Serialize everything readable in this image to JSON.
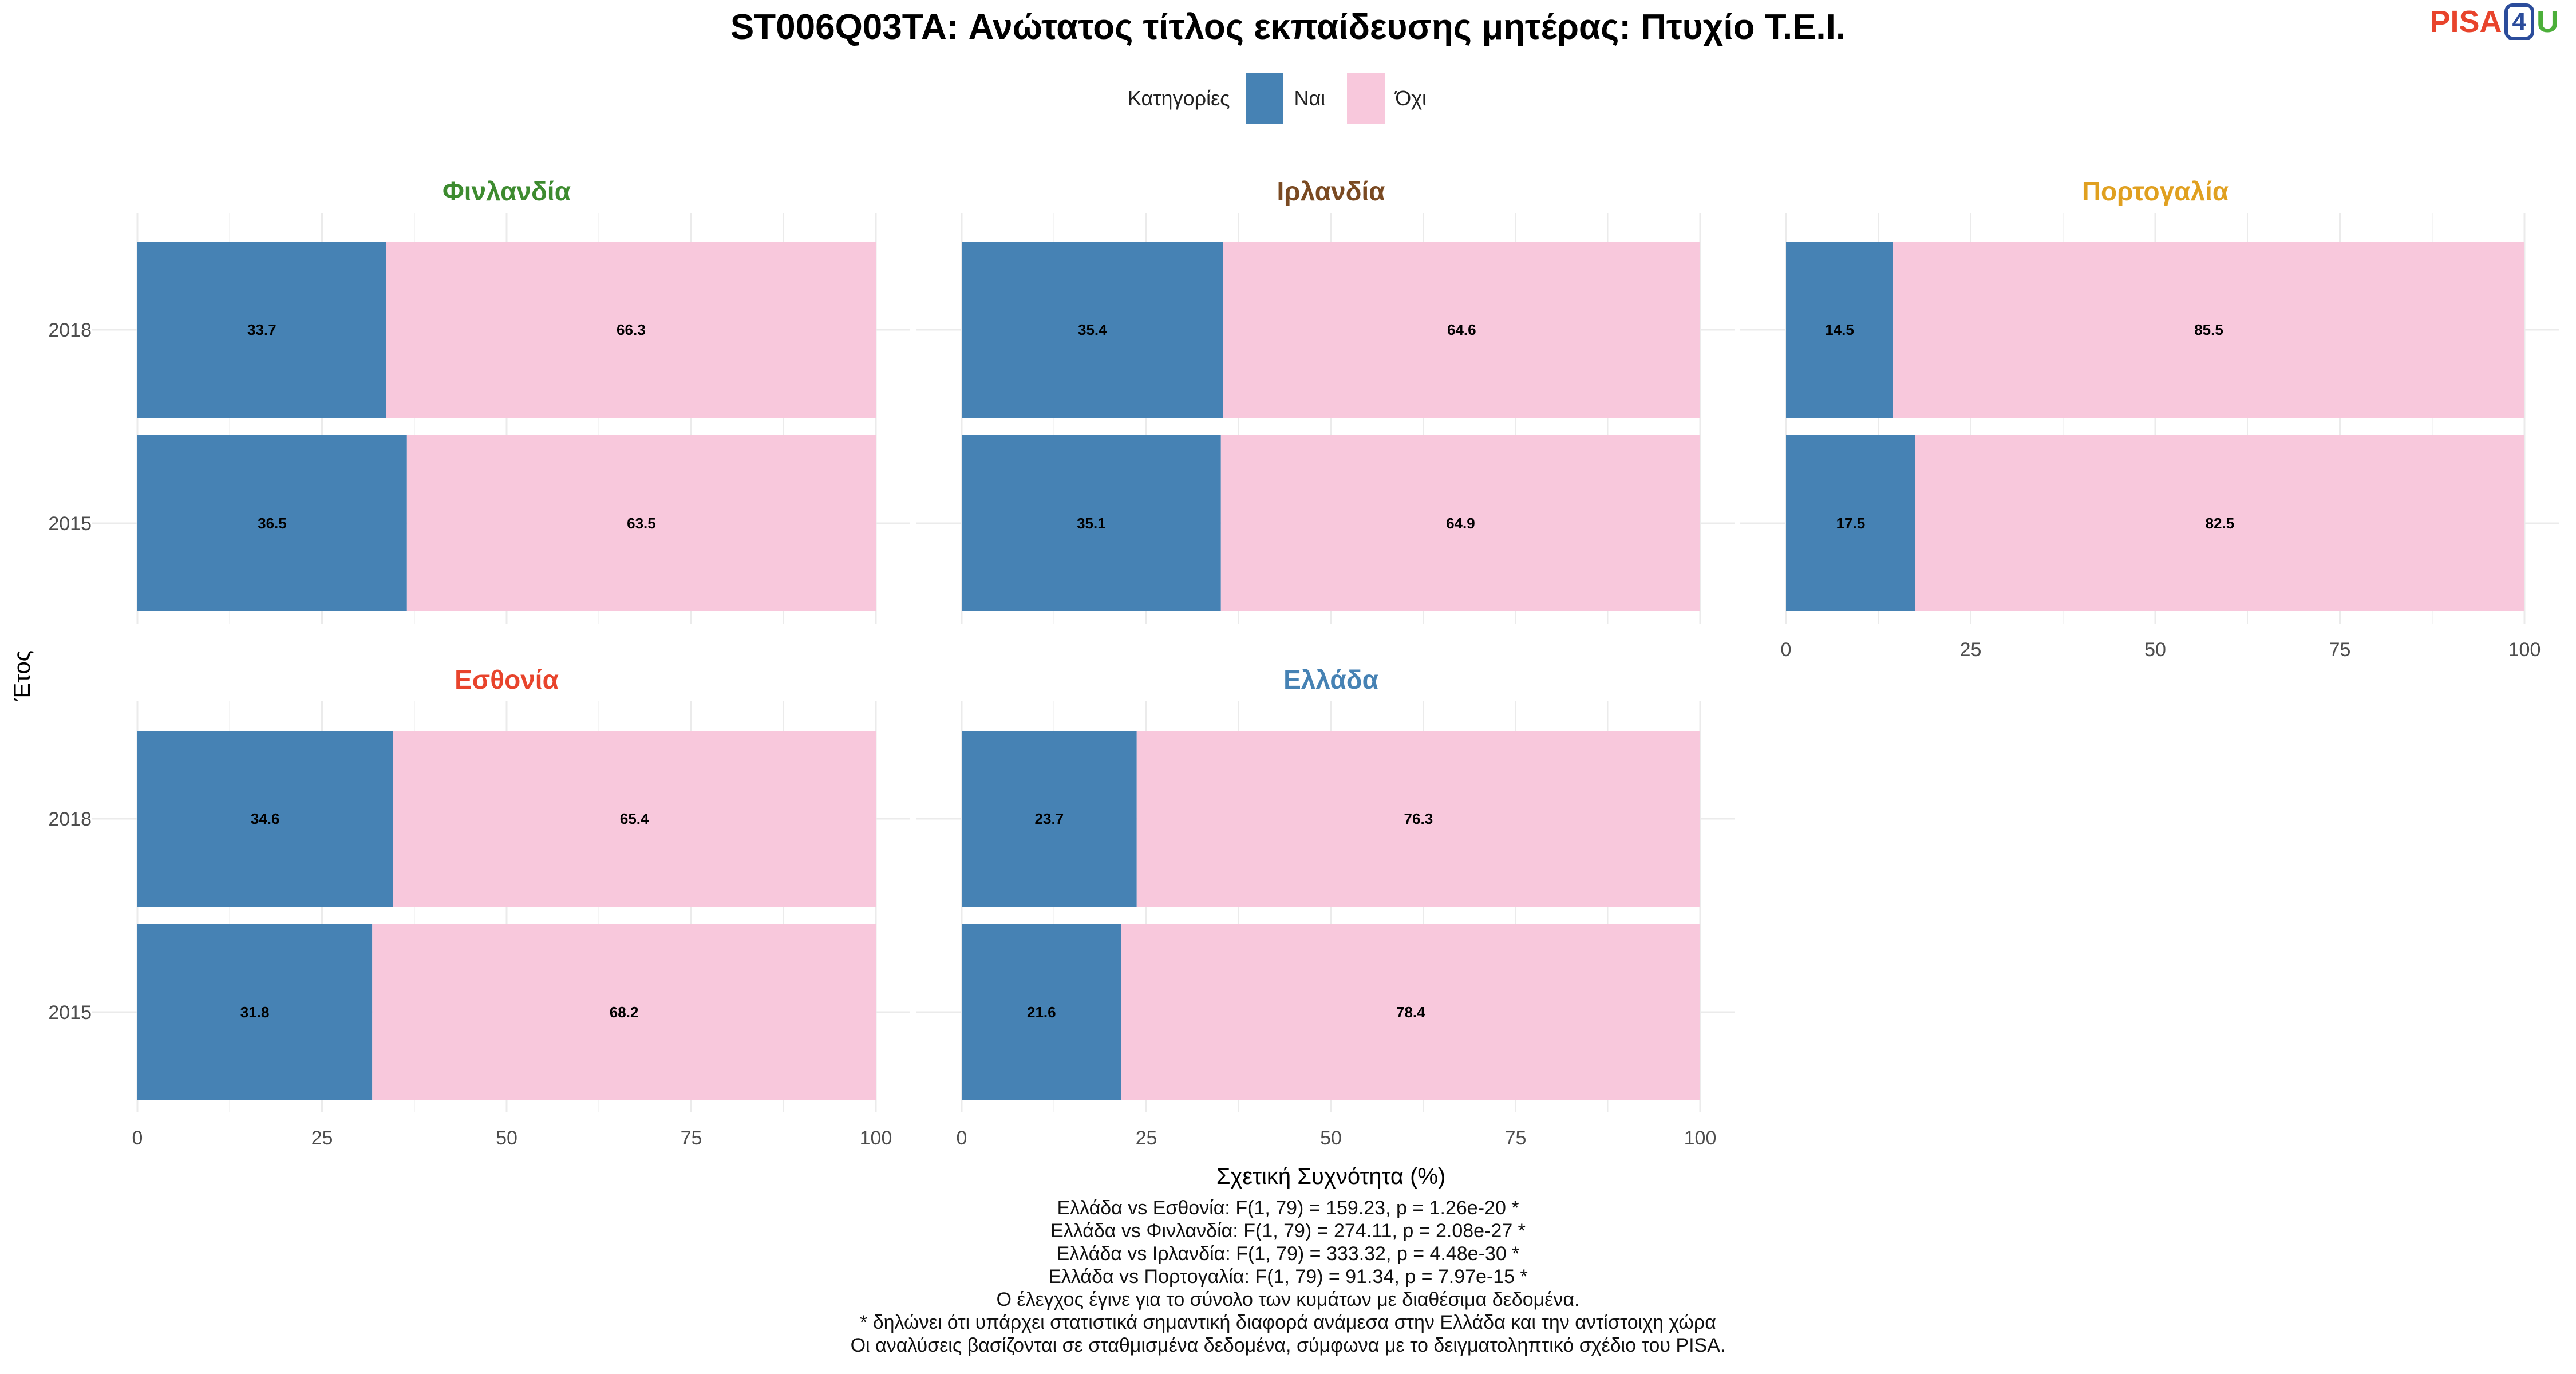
{
  "title": "ST006Q03TA: Ανώτατος τίτλος εκπαίδευσης μητέρας: Πτυχίο Τ.Ε.Ι.",
  "logo": {
    "part1": "PISA",
    "part2": "4",
    "part3": "U"
  },
  "legend": {
    "title": "Κατηγορίες",
    "items": [
      {
        "label": "Ναι",
        "color": "#4682b4"
      },
      {
        "label": "Όχι",
        "color": "#f8c8dc"
      }
    ]
  },
  "chart_data": {
    "type": "bar",
    "orientation": "horizontal",
    "stacked": true,
    "xlabel": "Σχετική Συχνότητα (%)",
    "ylabel": "Έτος",
    "xlim": [
      0,
      100
    ],
    "xticks": [
      "0",
      "25",
      "50",
      "75",
      "100"
    ],
    "categories": [
      "2018",
      "2015"
    ],
    "grid": true,
    "legend_position": "top",
    "panels": [
      {
        "title": "Φινλανδία",
        "title_color": "#3d8b2f",
        "values": {
          "Ναι": [
            33.7,
            36.5
          ],
          "Όχι": [
            66.3,
            63.5
          ]
        }
      },
      {
        "title": "Ιρλανδία",
        "title_color": "#7a4a22",
        "values": {
          "Ναι": [
            35.4,
            35.1
          ],
          "Όχι": [
            64.6,
            64.9
          ]
        }
      },
      {
        "title": "Πορτογαλία",
        "title_color": "#e0a020",
        "values": {
          "Ναι": [
            14.5,
            17.5
          ],
          "Όχι": [
            85.5,
            82.5
          ]
        }
      },
      {
        "title": "Εσθονία",
        "title_color": "#e8442c",
        "values": {
          "Ναι": [
            34.6,
            31.8
          ],
          "Όχι": [
            65.4,
            68.2
          ]
        }
      },
      {
        "title": "Ελλάδα",
        "title_color": "#4682b4",
        "values": {
          "Ναι": [
            23.7,
            21.6
          ],
          "Όχι": [
            76.3,
            78.4
          ]
        }
      }
    ]
  },
  "footnotes": [
    "Ελλάδα vs Εσθονία: F(1, 79) = 159.23, p = 1.26e-20 *",
    "Ελλάδα vs Φινλανδία: F(1, 79) = 274.11, p = 2.08e-27 *",
    "Ελλάδα vs Ιρλανδία: F(1, 79) = 333.32, p = 4.48e-30 *",
    "Ελλάδα vs Πορτογαλία: F(1, 79) = 91.34, p = 7.97e-15 *",
    "Ο έλεγχος έγινε για το σύνολο των κυμάτων με διαθέσιμα δεδομένα.",
    "* δηλώνει ότι υπάρχει στατιστικά σημαντική διαφορά ανάμεσα στην Ελλάδα και την αντίστοιχη χώρα",
    "Οι αναλύσεις βασίζονται σε σταθμισμένα δεδομένα, σύμφωνα με το δειγματοληπτικό σχέδιο του PISA."
  ]
}
